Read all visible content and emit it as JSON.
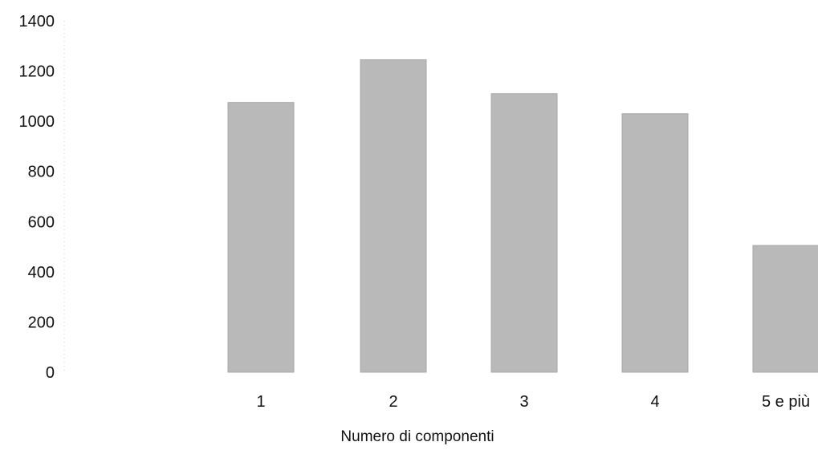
{
  "chart_data": {
    "type": "bar",
    "title": "",
    "xlabel": "Numero di componenti",
    "ylabel": "",
    "categories": [
      "1",
      "2",
      "3",
      "4",
      "5 e più"
    ],
    "values": [
      1075,
      1245,
      1110,
      1030,
      505
    ],
    "ylim": [
      0,
      1400
    ],
    "yticks": [
      0,
      200,
      400,
      600,
      800,
      1000,
      1200,
      1400
    ],
    "grid": false,
    "legend": "none",
    "colors": {
      "bar": "#b9b9b9",
      "bar_edge": "#a7a7a7",
      "text": "#111111",
      "dotted": "#c8c8c8"
    }
  }
}
